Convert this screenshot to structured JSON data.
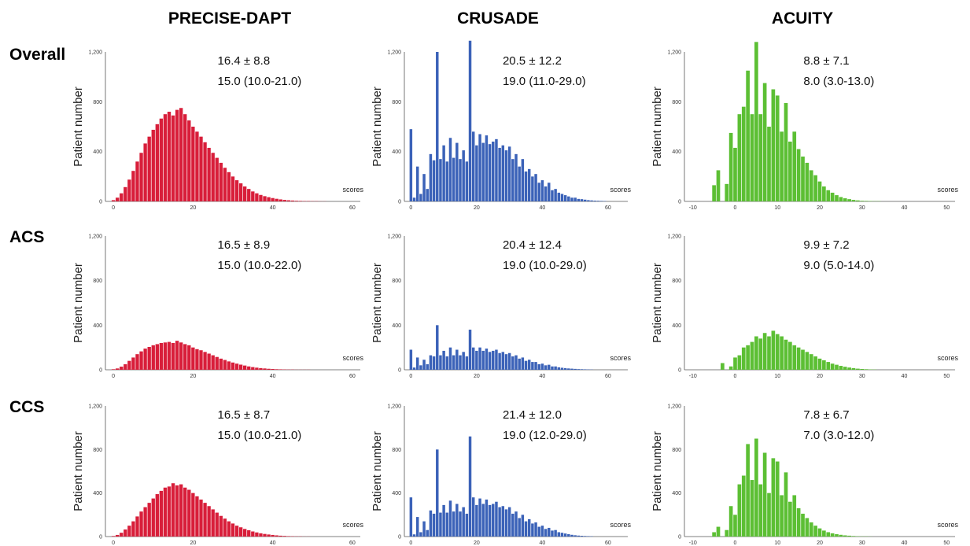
{
  "columns": [
    "PRECISE-DAPT",
    "CRUSADE",
    "ACUITY"
  ],
  "rows": [
    "Overall",
    "ACS",
    "CCS"
  ],
  "colors": {
    "PRECISE-DAPT": "#d81e3a",
    "CRUSADE": "#3b62b8",
    "ACUITY": "#5cbf34"
  },
  "axis": {
    "ylabel": "Patient number",
    "xlabel": "scores"
  },
  "chart_data": [
    {
      "type": "bar",
      "score": "PRECISE-DAPT",
      "group": "Overall",
      "stats_line1": "16.4 ± 8.8",
      "stats_line2": "15.0 (10.0-21.0)",
      "ylabel": "Patient number",
      "xlabel": "scores",
      "ylim": [
        0,
        1200
      ],
      "yticks": [
        "0",
        "400",
        "800",
        "1,200"
      ],
      "xlim": [
        -2,
        62
      ],
      "xticks": [
        "0",
        "20",
        "40",
        "60"
      ],
      "x_start": 0,
      "bin_width": 1,
      "values": [
        10,
        30,
        65,
        115,
        175,
        245,
        320,
        390,
        465,
        520,
        575,
        620,
        665,
        700,
        720,
        690,
        735,
        750,
        700,
        650,
        600,
        560,
        520,
        475,
        430,
        390,
        350,
        310,
        270,
        235,
        200,
        170,
        145,
        120,
        100,
        80,
        65,
        52,
        42,
        34,
        27,
        21,
        16,
        12,
        9,
        7,
        5,
        4,
        3,
        3,
        2,
        2,
        1,
        1
      ]
    },
    {
      "type": "bar",
      "score": "CRUSADE",
      "group": "Overall",
      "stats_line1": "20.5 ± 12.2",
      "stats_line2": "19.0 (11.0-29.0)",
      "ylabel": "Patient number",
      "xlabel": "scores",
      "ylim": [
        0,
        1200
      ],
      "yticks": [
        "0",
        "400",
        "800",
        "1,200"
      ],
      "xlim": [
        -2,
        66
      ],
      "xticks": [
        "0",
        "20",
        "40",
        "60"
      ],
      "x_start": 0,
      "bin_width": 1,
      "values": [
        580,
        30,
        280,
        60,
        220,
        100,
        380,
        330,
        1200,
        340,
        450,
        320,
        510,
        350,
        470,
        340,
        410,
        320,
        1290,
        560,
        450,
        540,
        470,
        530,
        460,
        480,
        500,
        430,
        450,
        410,
        440,
        340,
        380,
        280,
        340,
        240,
        260,
        200,
        220,
        150,
        170,
        120,
        150,
        90,
        100,
        70,
        60,
        50,
        40,
        30,
        30,
        20,
        18,
        14,
        10,
        8,
        6,
        5,
        4,
        3
      ]
    },
    {
      "type": "bar",
      "score": "ACUITY",
      "group": "Overall",
      "stats_line1": "8.8 ± 7.1",
      "stats_line2": "8.0 (3.0-13.0)",
      "ylabel": "Patient number",
      "xlabel": "scores",
      "ylim": [
        0,
        1200
      ],
      "yticks": [
        "0",
        "400",
        "800",
        "1,200"
      ],
      "xlim": [
        -12,
        52
      ],
      "xticks": [
        "-10",
        "0",
        "10",
        "20",
        "30",
        "40",
        "50"
      ],
      "x_start": -5,
      "bin_width": 1,
      "values": [
        130,
        250,
        0,
        140,
        550,
        430,
        700,
        760,
        1050,
        700,
        1280,
        700,
        950,
        600,
        900,
        850,
        560,
        790,
        480,
        560,
        420,
        360,
        310,
        250,
        210,
        160,
        120,
        90,
        70,
        50,
        35,
        25,
        18,
        12,
        8,
        5,
        4,
        3,
        2,
        2
      ]
    },
    {
      "type": "bar",
      "score": "PRECISE-DAPT",
      "group": "ACS",
      "stats_line1": "16.5 ± 8.9",
      "stats_line2": "15.0 (10.0-22.0)",
      "ylabel": "Patient number",
      "xlabel": "scores",
      "ylim": [
        0,
        1200
      ],
      "yticks": [
        "0",
        "400",
        "800",
        "1,200"
      ],
      "xlim": [
        -2,
        62
      ],
      "xticks": [
        "0",
        "20",
        "40",
        "60"
      ],
      "x_start": 0,
      "bin_width": 1,
      "values": [
        5,
        12,
        28,
        50,
        80,
        110,
        140,
        165,
        190,
        205,
        220,
        230,
        240,
        245,
        250,
        240,
        260,
        245,
        230,
        220,
        200,
        185,
        175,
        160,
        145,
        130,
        115,
        100,
        88,
        75,
        65,
        55,
        46,
        38,
        30,
        24,
        19,
        15,
        12,
        9,
        7,
        5,
        4,
        3,
        2,
        2,
        1,
        1,
        1,
        1
      ]
    },
    {
      "type": "bar",
      "score": "CRUSADE",
      "group": "ACS",
      "stats_line1": "20.4 ± 12.4",
      "stats_line2": "19.0 (10.0-29.0)",
      "ylabel": "Patient number",
      "xlabel": "scores",
      "ylim": [
        0,
        1200
      ],
      "yticks": [
        "0",
        "400",
        "800",
        "1,200"
      ],
      "xlim": [
        -2,
        66
      ],
      "xticks": [
        "0",
        "20",
        "40",
        "60"
      ],
      "x_start": 0,
      "bin_width": 1,
      "values": [
        180,
        20,
        110,
        40,
        90,
        50,
        130,
        120,
        400,
        130,
        170,
        120,
        200,
        130,
        180,
        130,
        160,
        120,
        360,
        200,
        170,
        200,
        170,
        190,
        160,
        170,
        180,
        150,
        160,
        140,
        150,
        120,
        130,
        100,
        110,
        80,
        90,
        70,
        70,
        50,
        55,
        40,
        45,
        30,
        30,
        22,
        18,
        15,
        12,
        10,
        8,
        6,
        5,
        4,
        3,
        2
      ]
    },
    {
      "type": "bar",
      "score": "ACUITY",
      "group": "ACS",
      "stats_line1": "9.9 ± 7.2",
      "stats_line2": "9.0 (5.0-14.0)",
      "ylabel": "Patient number",
      "xlabel": "scores",
      "ylim": [
        0,
        1200
      ],
      "yticks": [
        "0",
        "400",
        "800",
        "1,200"
      ],
      "xlim": [
        -12,
        52
      ],
      "xticks": [
        "-10",
        "0",
        "10",
        "20",
        "30",
        "40",
        "50"
      ],
      "x_start": -3,
      "bin_width": 1,
      "values": [
        60,
        0,
        30,
        110,
        130,
        200,
        220,
        250,
        300,
        280,
        330,
        300,
        350,
        320,
        300,
        270,
        250,
        220,
        200,
        180,
        160,
        140,
        120,
        100,
        85,
        70,
        55,
        45,
        35,
        27,
        20,
        15,
        10,
        7,
        5,
        3,
        2
      ]
    },
    {
      "type": "bar",
      "score": "PRECISE-DAPT",
      "group": "CCS",
      "stats_line1": "16.5 ± 8.7",
      "stats_line2": "15.0 (10.0-21.0)",
      "ylabel": "Patient number",
      "xlabel": "scores",
      "ylim": [
        0,
        1200
      ],
      "yticks": [
        "0",
        "400",
        "800",
        "1,200"
      ],
      "xlim": [
        -2,
        62
      ],
      "xticks": [
        "0",
        "20",
        "40",
        "60"
      ],
      "x_start": 0,
      "bin_width": 1,
      "values": [
        5,
        15,
        35,
        65,
        100,
        140,
        185,
        230,
        270,
        310,
        350,
        390,
        420,
        450,
        460,
        490,
        470,
        480,
        450,
        430,
        400,
        370,
        340,
        310,
        280,
        250,
        220,
        190,
        165,
        140,
        120,
        100,
        85,
        70,
        58,
        47,
        38,
        30,
        24,
        19,
        15,
        11,
        8,
        6,
        4,
        3,
        2,
        2,
        1,
        1
      ]
    },
    {
      "type": "bar",
      "score": "CRUSADE",
      "group": "CCS",
      "stats_line1": "21.4 ± 12.0",
      "stats_line2": "19.0 (12.0-29.0)",
      "ylabel": "Patient number",
      "xlabel": "scores",
      "ylim": [
        0,
        1200
      ],
      "yticks": [
        "0",
        "400",
        "800",
        "1,200"
      ],
      "xlim": [
        -2,
        66
      ],
      "xticks": [
        "0",
        "20",
        "40",
        "60"
      ],
      "x_start": 0,
      "bin_width": 1,
      "values": [
        360,
        20,
        180,
        40,
        140,
        60,
        240,
        210,
        800,
        220,
        290,
        220,
        330,
        230,
        300,
        230,
        270,
        210,
        920,
        360,
        290,
        350,
        300,
        340,
        290,
        300,
        320,
        270,
        280,
        250,
        270,
        210,
        230,
        170,
        200,
        140,
        160,
        120,
        130,
        90,
        100,
        70,
        80,
        55,
        60,
        40,
        35,
        28,
        22,
        16,
        12,
        9,
        7,
        5,
        4,
        3
      ]
    },
    {
      "type": "bar",
      "score": "ACUITY",
      "group": "CCS",
      "stats_line1": "7.8 ± 6.7",
      "stats_line2": "7.0 (3.0-12.0)",
      "ylabel": "Patient number",
      "xlabel": "scores",
      "ylim": [
        0,
        1200
      ],
      "yticks": [
        "0",
        "400",
        "800",
        "1,200"
      ],
      "xlim": [
        -12,
        52
      ],
      "xticks": [
        "-10",
        "0",
        "10",
        "20",
        "30",
        "40",
        "50"
      ],
      "x_start": -5,
      "bin_width": 1,
      "values": [
        40,
        90,
        0,
        60,
        280,
        200,
        480,
        560,
        850,
        520,
        900,
        480,
        770,
        400,
        720,
        690,
        380,
        590,
        320,
        380,
        260,
        210,
        170,
        130,
        100,
        75,
        55,
        40,
        30,
        22,
        16,
        11,
        8,
        5,
        3,
        2,
        2,
        1
      ]
    }
  ]
}
